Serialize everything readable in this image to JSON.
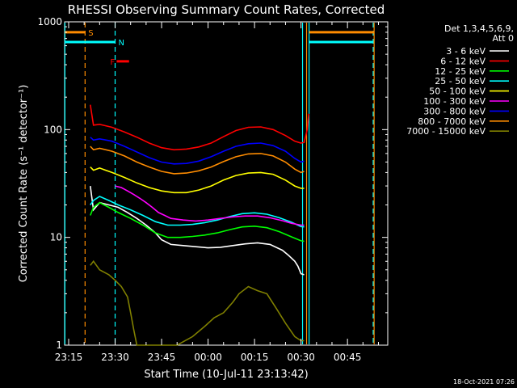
{
  "chart_data": {
    "type": "line",
    "title": "RHESSI Observing Summary Count Rates, Corrected",
    "xlabel": "Start Time (10-Jul-11 23:13:42)",
    "ylabel": "Corrected Count Rate (s⁻¹ detector⁻¹)",
    "y_scale": "log",
    "ylim": [
      1,
      1000
    ],
    "y_ticks": [
      {
        "value": 1,
        "label": "1"
      },
      {
        "value": 10,
        "label": "10"
      },
      {
        "value": 100,
        "label": "100"
      },
      {
        "value": 1000,
        "label": "1000"
      }
    ],
    "x_ticks": [
      "23:15",
      "23:30",
      "23:45",
      "00:00",
      "00:15",
      "00:30",
      "00:45"
    ],
    "x_tick_minutes": [
      15,
      30,
      45,
      60,
      75,
      90,
      105
    ],
    "xlim_minutes": [
      13.7,
      118
    ],
    "legend_header": "Det 1,3,4,5,6,9,",
    "legend_subheader": "Att 0",
    "series": [
      {
        "name": "3 - 6 keV",
        "color": "#ffffff",
        "points": [
          [
            22,
            30
          ],
          [
            23,
            18
          ],
          [
            25,
            21
          ],
          [
            28,
            20
          ],
          [
            31,
            19
          ],
          [
            34,
            17
          ],
          [
            37,
            15
          ],
          [
            40,
            13
          ],
          [
            43,
            11
          ],
          [
            45,
            9.5
          ],
          [
            48,
            8.6
          ],
          [
            52,
            8.4
          ],
          [
            56,
            8.2
          ],
          [
            60,
            8.0
          ],
          [
            64,
            8.1
          ],
          [
            68,
            8.4
          ],
          [
            72,
            8.7
          ],
          [
            76,
            8.9
          ],
          [
            80,
            8.6
          ],
          [
            84,
            7.6
          ],
          [
            86,
            6.8
          ],
          [
            88,
            6.0
          ],
          [
            89,
            5.4
          ],
          [
            90,
            4.6
          ],
          [
            91,
            4.5
          ]
        ]
      },
      {
        "name": "6 - 12 keV",
        "color": "#ff0000",
        "points": [
          [
            22,
            170
          ],
          [
            23,
            110
          ],
          [
            25,
            112
          ],
          [
            29,
            105
          ],
          [
            33,
            95
          ],
          [
            37,
            85
          ],
          [
            41,
            75
          ],
          [
            45,
            68
          ],
          [
            49,
            65
          ],
          [
            53,
            66
          ],
          [
            57,
            69
          ],
          [
            61,
            75
          ],
          [
            65,
            86
          ],
          [
            69,
            98
          ],
          [
            73,
            105
          ],
          [
            77,
            106
          ],
          [
            81,
            100
          ],
          [
            85,
            88
          ],
          [
            88,
            78
          ],
          [
            90,
            75
          ],
          [
            91,
            76
          ],
          [
            92,
            100
          ],
          [
            92.5,
            140
          ]
        ]
      },
      {
        "name": "12 - 25 keV",
        "color": "#00ff00",
        "points": [
          [
            22,
            16
          ],
          [
            23,
            19
          ],
          [
            25,
            21
          ],
          [
            28,
            19
          ],
          [
            31,
            17
          ],
          [
            35,
            15
          ],
          [
            39,
            13
          ],
          [
            43,
            11
          ],
          [
            47,
            10
          ],
          [
            51,
            10
          ],
          [
            55,
            10.2
          ],
          [
            59,
            10.5
          ],
          [
            63,
            11
          ],
          [
            67,
            11.8
          ],
          [
            71,
            12.5
          ],
          [
            75,
            12.7
          ],
          [
            79,
            12.3
          ],
          [
            83,
            11.3
          ],
          [
            87,
            10.1
          ],
          [
            90,
            9.3
          ],
          [
            91,
            9.2
          ]
        ]
      },
      {
        "name": "25 - 50 keV",
        "color": "#00ffff",
        "points": [
          [
            22,
            20
          ],
          [
            23,
            22
          ],
          [
            25,
            24
          ],
          [
            28,
            22
          ],
          [
            31,
            20
          ],
          [
            35,
            18
          ],
          [
            39,
            16
          ],
          [
            43,
            14
          ],
          [
            47,
            13
          ],
          [
            51,
            13
          ],
          [
            55,
            13.2
          ],
          [
            59,
            13.7
          ],
          [
            63,
            14.5
          ],
          [
            67,
            15.6
          ],
          [
            71,
            16.6
          ],
          [
            75,
            16.9
          ],
          [
            79,
            16.4
          ],
          [
            83,
            15.2
          ],
          [
            87,
            13.8
          ],
          [
            90,
            12.6
          ],
          [
            91,
            12.5
          ]
        ]
      },
      {
        "name": "50 - 100 keV",
        "color": "#ffff00",
        "points": [
          [
            22,
            45
          ],
          [
            23,
            42
          ],
          [
            25,
            44
          ],
          [
            29,
            40
          ],
          [
            33,
            36
          ],
          [
            37,
            32
          ],
          [
            41,
            29
          ],
          [
            45,
            27
          ],
          [
            49,
            26
          ],
          [
            53,
            26
          ],
          [
            57,
            27.5
          ],
          [
            61,
            30
          ],
          [
            65,
            34
          ],
          [
            69,
            37.5
          ],
          [
            73,
            39.5
          ],
          [
            77,
            40
          ],
          [
            81,
            38.5
          ],
          [
            85,
            34
          ],
          [
            88,
            30
          ],
          [
            90,
            28.5
          ],
          [
            91,
            28.5
          ]
        ]
      },
      {
        "name": "100 - 300 keV",
        "color": "#ff00ff",
        "points": [
          [
            30,
            30
          ],
          [
            32,
            29
          ],
          [
            34,
            27
          ],
          [
            36,
            25
          ],
          [
            38,
            23
          ],
          [
            40,
            21
          ],
          [
            42,
            19
          ],
          [
            44,
            17
          ],
          [
            46,
            16
          ],
          [
            48,
            15
          ],
          [
            52,
            14.5
          ],
          [
            56,
            14.2
          ],
          [
            60,
            14.5
          ],
          [
            64,
            15
          ],
          [
            68,
            15.5
          ],
          [
            72,
            15.8
          ],
          [
            76,
            15.8
          ],
          [
            80,
            15.2
          ],
          [
            84,
            14.3
          ],
          [
            87,
            13.5
          ],
          [
            90,
            13
          ],
          [
            91,
            13
          ]
        ]
      },
      {
        "name": "300 - 800 keV",
        "color": "#0000ff",
        "points": [
          [
            22,
            85
          ],
          [
            23,
            80
          ],
          [
            25,
            82
          ],
          [
            29,
            78
          ],
          [
            33,
            70
          ],
          [
            37,
            62
          ],
          [
            41,
            55
          ],
          [
            45,
            50
          ],
          [
            49,
            48
          ],
          [
            53,
            48.5
          ],
          [
            57,
            51
          ],
          [
            61,
            56
          ],
          [
            65,
            63
          ],
          [
            69,
            70
          ],
          [
            73,
            74
          ],
          [
            77,
            75
          ],
          [
            81,
            71
          ],
          [
            85,
            63
          ],
          [
            88,
            54
          ],
          [
            90,
            50
          ],
          [
            91,
            51
          ]
        ]
      },
      {
        "name": "800 - 7000 keV",
        "color": "#ff8c00",
        "points": [
          [
            22,
            70
          ],
          [
            23,
            65
          ],
          [
            25,
            67
          ],
          [
            29,
            63
          ],
          [
            33,
            57
          ],
          [
            37,
            50
          ],
          [
            41,
            45
          ],
          [
            45,
            41
          ],
          [
            49,
            39
          ],
          [
            53,
            39.5
          ],
          [
            57,
            41.5
          ],
          [
            61,
            45
          ],
          [
            65,
            50.5
          ],
          [
            69,
            56
          ],
          [
            73,
            59.5
          ],
          [
            77,
            60
          ],
          [
            81,
            57
          ],
          [
            85,
            50
          ],
          [
            88,
            43
          ],
          [
            90,
            40
          ],
          [
            91,
            41
          ]
        ]
      },
      {
        "name": "7000 - 15000 keV",
        "color": "#808000",
        "points": [
          [
            22,
            5.5
          ],
          [
            23,
            6
          ],
          [
            25,
            5
          ],
          [
            28,
            4.5
          ],
          [
            30,
            4
          ],
          [
            32,
            3.5
          ],
          [
            34,
            2.8
          ],
          [
            35,
            2
          ],
          [
            36,
            1.4
          ],
          [
            37,
            1
          ],
          [
            40,
            1
          ],
          [
            45,
            1
          ],
          [
            50,
            1
          ],
          [
            55,
            1.2
          ],
          [
            59,
            1.5
          ],
          [
            62,
            1.8
          ],
          [
            65,
            2
          ],
          [
            68,
            2.5
          ],
          [
            70,
            3
          ],
          [
            73,
            3.5
          ],
          [
            76,
            3.2
          ],
          [
            79,
            3
          ],
          [
            82,
            2.2
          ],
          [
            85,
            1.6
          ],
          [
            88,
            1.2
          ],
          [
            90,
            1.1
          ],
          [
            91,
            1.1
          ]
        ]
      }
    ],
    "vertical_markers": [
      {
        "minute": 13.8,
        "color": "#00ffff",
        "style": "solid"
      },
      {
        "minute": 20.3,
        "color": "#ff8c00",
        "style": "dashed"
      },
      {
        "minute": 30.0,
        "color": "#00ffff",
        "style": "dashed"
      },
      {
        "minute": 90.5,
        "color": "#00ffff",
        "style": "solid"
      },
      {
        "minute": 91.8,
        "color": "#ff8c00",
        "style": "solid"
      },
      {
        "minute": 92.6,
        "color": "#00ffff",
        "style": "solid"
      },
      {
        "minute": 113.3,
        "color": "#00ffff",
        "style": "dashed"
      },
      {
        "minute": 113.6,
        "color": "#ff8c00",
        "style": "solid"
      }
    ],
    "flag_bars": [
      {
        "label": "S",
        "color": "#ff8c00",
        "y": 800,
        "segments": [
          [
            13.8,
            20.3
          ],
          [
            92.6,
            113.6
          ]
        ]
      },
      {
        "label": "N",
        "color": "#00ffff",
        "y": 650,
        "segments": [
          [
            13.8,
            30.0
          ],
          [
            92.6,
            113.3
          ]
        ]
      },
      {
        "label": "F",
        "color": "#ff0000",
        "y": 430,
        "segments": [
          [
            30.5,
            34.5
          ]
        ]
      }
    ],
    "grid": false,
    "legend_position": "top-right outside plot",
    "footer_date": "18-Oct-2021 07:26"
  }
}
